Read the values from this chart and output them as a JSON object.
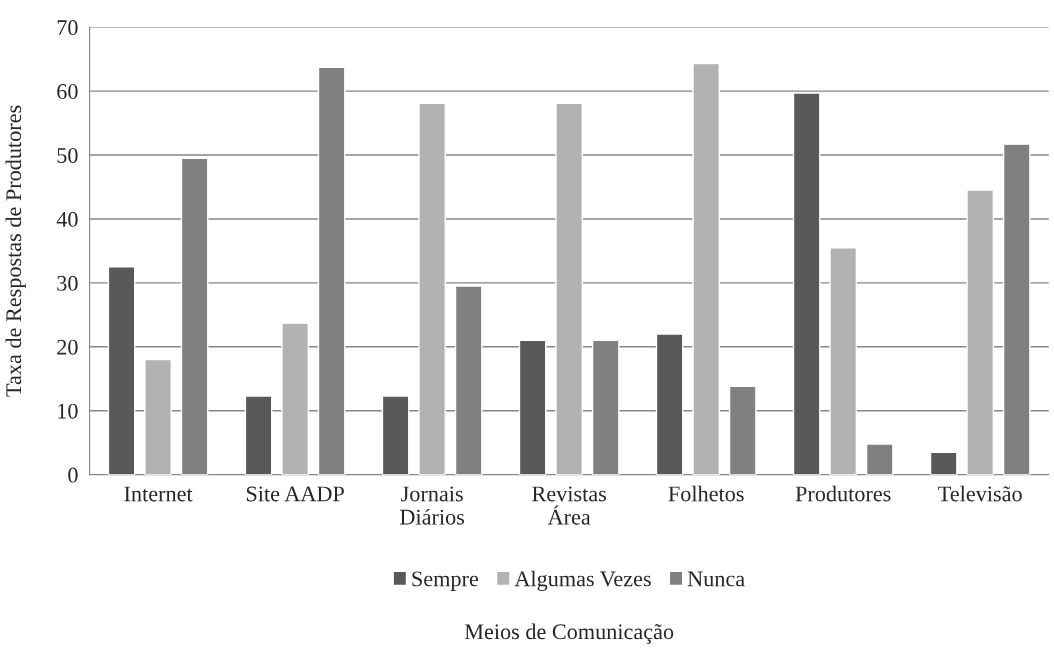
{
  "chart_data": {
    "type": "bar",
    "xlabel": "Meios de Comunicação",
    "ylabel": "Taxa de Respostas de Produtores",
    "categories": [
      "Internet",
      "Site AADP",
      "Jornais\nDiários",
      "Revistas\nÁrea",
      "Folhetos",
      "Produtores",
      "Televisão"
    ],
    "series": [
      {
        "name": "Sempre",
        "color": "#595959",
        "values": [
          32.5,
          12.3,
          12.3,
          21,
          22,
          59.7,
          3.5
        ]
      },
      {
        "name": "Algumas Vezes",
        "color": "#b2b2b2",
        "values": [
          18,
          23.7,
          58.1,
          58.1,
          64.3,
          35.5,
          44.5
        ]
      },
      {
        "name": "Nunca",
        "color": "#808080",
        "values": [
          49.5,
          63.7,
          29.5,
          21,
          13.8,
          4.8,
          51.7
        ]
      }
    ],
    "ylim": [
      0,
      70
    ],
    "yticks": [
      0,
      10,
      20,
      30,
      40,
      50,
      60,
      70
    ],
    "grid": "y",
    "legend": "bottom"
  }
}
